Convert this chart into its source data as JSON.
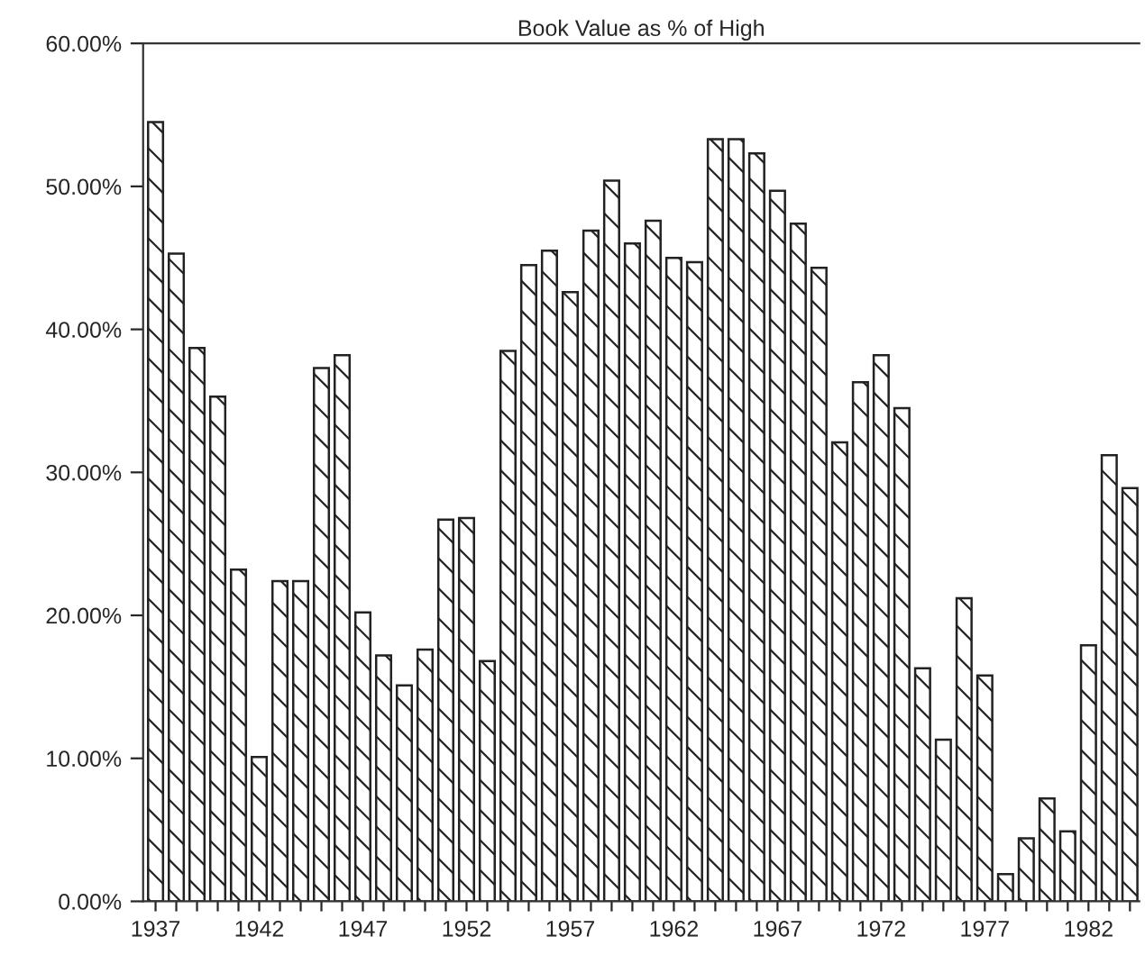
{
  "chart_data": {
    "type": "bar",
    "title": "Book Value as % of High",
    "categories": [
      "1937",
      null,
      null,
      null,
      null,
      "1942",
      null,
      null,
      null,
      null,
      "1947",
      null,
      null,
      null,
      null,
      "1952",
      null,
      null,
      null,
      null,
      "1957",
      null,
      null,
      null,
      null,
      "1962",
      null,
      null,
      null,
      null,
      "1967",
      null,
      null,
      null,
      null,
      "1972",
      null,
      null,
      null,
      null,
      "1977",
      null,
      null,
      null,
      null,
      "1982",
      null,
      null
    ],
    "values": [
      54.5,
      45.3,
      38.7,
      35.3,
      23.2,
      10.1,
      22.4,
      22.4,
      37.3,
      38.2,
      20.2,
      17.2,
      15.1,
      17.6,
      26.7,
      26.8,
      16.8,
      38.5,
      44.5,
      45.5,
      42.6,
      46.9,
      50.4,
      46.0,
      47.6,
      45.0,
      44.7,
      53.3,
      53.3,
      52.3,
      49.7,
      47.4,
      44.3,
      32.1,
      36.3,
      38.2,
      34.5,
      16.3,
      11.3,
      21.2,
      15.8,
      1.9,
      4.4,
      7.2,
      4.9,
      17.9,
      31.2,
      28.9
    ],
    "color": "#222222",
    "ylim": [
      0,
      60
    ],
    "yticks": [
      {
        "value": 0,
        "label": "0.00%"
      },
      {
        "value": 10,
        "label": "10.00%"
      },
      {
        "value": 20,
        "label": "20.00%"
      },
      {
        "value": 30,
        "label": "30.00%"
      },
      {
        "value": 40,
        "label": "40.00%"
      },
      {
        "value": 50,
        "label": "50.00%"
      },
      {
        "value": 60,
        "label": "60.00%"
      }
    ],
    "grid": false
  }
}
